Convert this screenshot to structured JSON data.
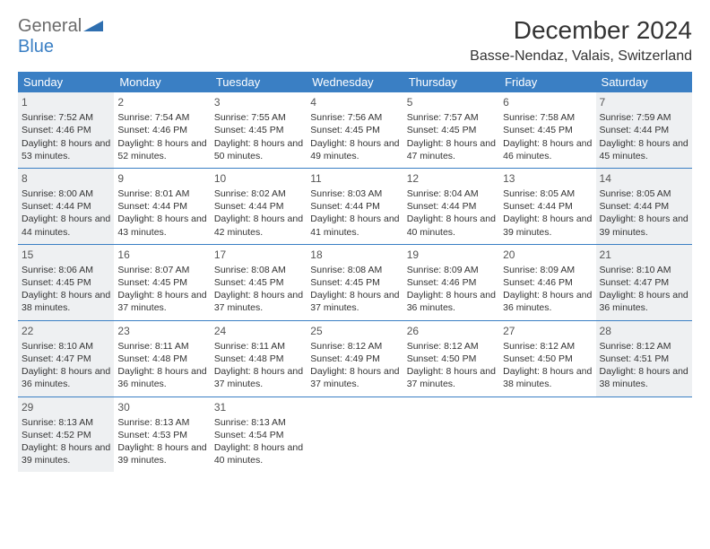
{
  "logo": {
    "part1": "General",
    "part2": "Blue"
  },
  "title": "December 2024",
  "location": "Basse-Nendaz, Valais, Switzerland",
  "header_bg": "#3a7fc4",
  "shaded_bg": "#eef0f2",
  "border_color": "#3a7fc4",
  "weekdays": [
    "Sunday",
    "Monday",
    "Tuesday",
    "Wednesday",
    "Thursday",
    "Friday",
    "Saturday"
  ],
  "weeks": [
    [
      {
        "n": "1",
        "shaded": true,
        "sunrise": "7:52 AM",
        "sunset": "4:46 PM",
        "dh": "8",
        "dm": "53"
      },
      {
        "n": "2",
        "sunrise": "7:54 AM",
        "sunset": "4:46 PM",
        "dh": "8",
        "dm": "52"
      },
      {
        "n": "3",
        "sunrise": "7:55 AM",
        "sunset": "4:45 PM",
        "dh": "8",
        "dm": "50"
      },
      {
        "n": "4",
        "sunrise": "7:56 AM",
        "sunset": "4:45 PM",
        "dh": "8",
        "dm": "49"
      },
      {
        "n": "5",
        "sunrise": "7:57 AM",
        "sunset": "4:45 PM",
        "dh": "8",
        "dm": "47"
      },
      {
        "n": "6",
        "sunrise": "7:58 AM",
        "sunset": "4:45 PM",
        "dh": "8",
        "dm": "46"
      },
      {
        "n": "7",
        "shaded": true,
        "sunrise": "7:59 AM",
        "sunset": "4:44 PM",
        "dh": "8",
        "dm": "45"
      }
    ],
    [
      {
        "n": "8",
        "shaded": true,
        "sunrise": "8:00 AM",
        "sunset": "4:44 PM",
        "dh": "8",
        "dm": "44"
      },
      {
        "n": "9",
        "sunrise": "8:01 AM",
        "sunset": "4:44 PM",
        "dh": "8",
        "dm": "43"
      },
      {
        "n": "10",
        "sunrise": "8:02 AM",
        "sunset": "4:44 PM",
        "dh": "8",
        "dm": "42"
      },
      {
        "n": "11",
        "sunrise": "8:03 AM",
        "sunset": "4:44 PM",
        "dh": "8",
        "dm": "41"
      },
      {
        "n": "12",
        "sunrise": "8:04 AM",
        "sunset": "4:44 PM",
        "dh": "8",
        "dm": "40"
      },
      {
        "n": "13",
        "sunrise": "8:05 AM",
        "sunset": "4:44 PM",
        "dh": "8",
        "dm": "39"
      },
      {
        "n": "14",
        "shaded": true,
        "sunrise": "8:05 AM",
        "sunset": "4:44 PM",
        "dh": "8",
        "dm": "39"
      }
    ],
    [
      {
        "n": "15",
        "shaded": true,
        "sunrise": "8:06 AM",
        "sunset": "4:45 PM",
        "dh": "8",
        "dm": "38"
      },
      {
        "n": "16",
        "sunrise": "8:07 AM",
        "sunset": "4:45 PM",
        "dh": "8",
        "dm": "37"
      },
      {
        "n": "17",
        "sunrise": "8:08 AM",
        "sunset": "4:45 PM",
        "dh": "8",
        "dm": "37"
      },
      {
        "n": "18",
        "sunrise": "8:08 AM",
        "sunset": "4:45 PM",
        "dh": "8",
        "dm": "37"
      },
      {
        "n": "19",
        "sunrise": "8:09 AM",
        "sunset": "4:46 PM",
        "dh": "8",
        "dm": "36"
      },
      {
        "n": "20",
        "sunrise": "8:09 AM",
        "sunset": "4:46 PM",
        "dh": "8",
        "dm": "36"
      },
      {
        "n": "21",
        "shaded": true,
        "sunrise": "8:10 AM",
        "sunset": "4:47 PM",
        "dh": "8",
        "dm": "36"
      }
    ],
    [
      {
        "n": "22",
        "shaded": true,
        "sunrise": "8:10 AM",
        "sunset": "4:47 PM",
        "dh": "8",
        "dm": "36"
      },
      {
        "n": "23",
        "sunrise": "8:11 AM",
        "sunset": "4:48 PM",
        "dh": "8",
        "dm": "36"
      },
      {
        "n": "24",
        "sunrise": "8:11 AM",
        "sunset": "4:48 PM",
        "dh": "8",
        "dm": "37"
      },
      {
        "n": "25",
        "sunrise": "8:12 AM",
        "sunset": "4:49 PM",
        "dh": "8",
        "dm": "37"
      },
      {
        "n": "26",
        "sunrise": "8:12 AM",
        "sunset": "4:50 PM",
        "dh": "8",
        "dm": "37"
      },
      {
        "n": "27",
        "sunrise": "8:12 AM",
        "sunset": "4:50 PM",
        "dh": "8",
        "dm": "38"
      },
      {
        "n": "28",
        "shaded": true,
        "sunrise": "8:12 AM",
        "sunset": "4:51 PM",
        "dh": "8",
        "dm": "38"
      }
    ],
    [
      {
        "n": "29",
        "shaded": true,
        "sunrise": "8:13 AM",
        "sunset": "4:52 PM",
        "dh": "8",
        "dm": "39"
      },
      {
        "n": "30",
        "sunrise": "8:13 AM",
        "sunset": "4:53 PM",
        "dh": "8",
        "dm": "39"
      },
      {
        "n": "31",
        "sunrise": "8:13 AM",
        "sunset": "4:54 PM",
        "dh": "8",
        "dm": "40"
      },
      {
        "empty": true
      },
      {
        "empty": true
      },
      {
        "empty": true
      },
      {
        "empty": true
      }
    ]
  ]
}
